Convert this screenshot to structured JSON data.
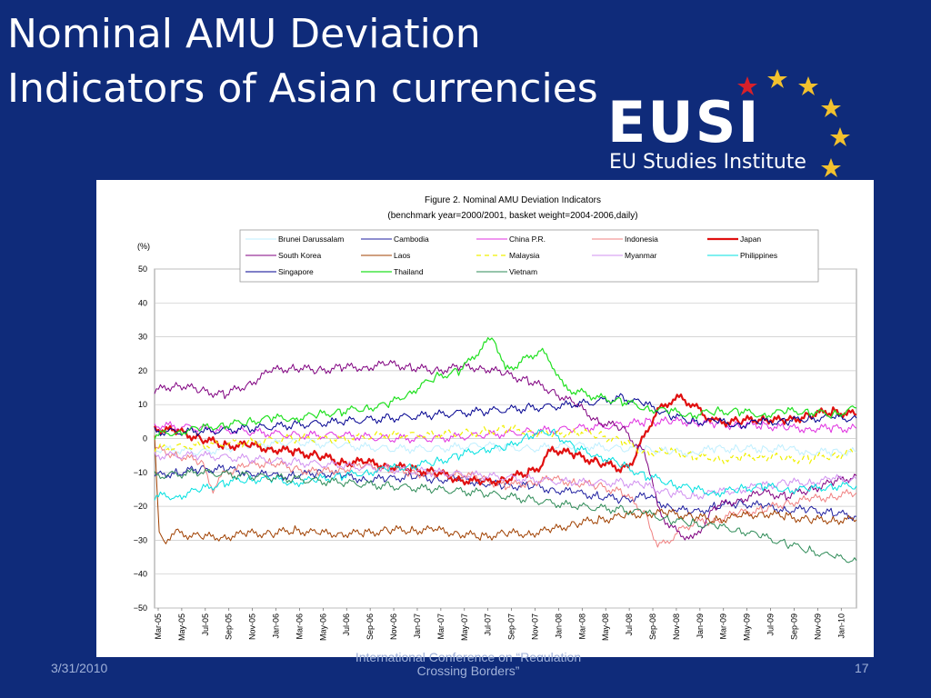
{
  "slide": {
    "title_line1": "Nominal AMU Deviation",
    "title_line2": "Indicators of Asian currencies",
    "logo_text": "EUSI",
    "logo_subtitle": "EU Studies Institute",
    "logo_icon": "eu-stars-icon",
    "footer_date": "3/31/2010",
    "footer_center_line1": "International Conference on “Regulation",
    "footer_center_line2": "Crossing Borders”",
    "footer_page": "17",
    "colors": {
      "background": "#0f2b7a",
      "text": "#ffffff",
      "footer": "#9fb0d8",
      "star_gold": "#f2c12e",
      "star_red": "#d8202a"
    }
  },
  "chart_data": {
    "type": "line",
    "title": "Figure 2. Nominal AMU Deviation Indicators",
    "subtitle": "(benchmark year=2000/2001, basket weight=2004-2006,daily)",
    "ylabel": "(%)",
    "ylim": [
      -50,
      50
    ],
    "yticks": [
      50,
      40,
      30,
      20,
      10,
      0,
      -10,
      -20,
      -30,
      -40,
      -50
    ],
    "xlim": [
      0,
      60
    ],
    "xticks": [
      "Mar-05",
      "May-05",
      "Jul-05",
      "Sep-05",
      "Nov-05",
      "Jan-06",
      "Mar-06",
      "May-06",
      "Jul-06",
      "Sep-06",
      "Nov-06",
      "Jan-07",
      "Mar-07",
      "May-07",
      "Jul-07",
      "Sep-07",
      "Nov-07",
      "Jan-08",
      "Mar-08",
      "May-08",
      "Jul-08",
      "Sep-08",
      "Nov-08",
      "Jan-09",
      "Mar-09",
      "May-09",
      "Jul-09",
      "Sep-09",
      "Nov-09",
      "Jan-10"
    ],
    "grid": true,
    "legend_position": "top",
    "series": [
      {
        "name": "Brunei Darussalam",
        "color": "#bfefff",
        "width": 1,
        "x": [
          0,
          4,
          8,
          12,
          16,
          20,
          24,
          28,
          32,
          36,
          40,
          42,
          44,
          46,
          48,
          50,
          52,
          54,
          56,
          58,
          60
        ],
        "y": [
          -3,
          -4,
          -2,
          -1,
          -2,
          -3,
          -3,
          -2,
          -3,
          -2,
          -3,
          -3,
          -4,
          -4,
          -3,
          -3,
          -3,
          -3,
          -4,
          -4,
          -4
        ]
      },
      {
        "name": "Cambodia",
        "color": "#1f1fa0",
        "width": 1,
        "x": [
          0,
          2,
          4,
          6,
          8,
          10,
          12,
          14,
          16,
          18,
          20,
          22,
          24,
          26,
          28,
          30,
          32,
          34,
          36,
          38,
          40,
          42,
          44,
          46,
          48,
          50,
          52,
          54,
          56,
          58,
          60
        ],
        "y": [
          -11,
          -10,
          -9,
          -9,
          -10,
          -11,
          -11,
          -10,
          -11,
          -12,
          -12,
          -11,
          -12,
          -12,
          -13,
          -14,
          -14,
          -15,
          -16,
          -17,
          -18,
          -17,
          -20,
          -22,
          -20,
          -19,
          -20,
          -21,
          -21,
          -22,
          -23
        ]
      },
      {
        "name": "China P.R.",
        "color": "#e030e0",
        "width": 1,
        "x": [
          0,
          4,
          8,
          12,
          16,
          20,
          24,
          28,
          32,
          36,
          40,
          42,
          44,
          46,
          48,
          50,
          52,
          54,
          56,
          58,
          60
        ],
        "y": [
          4,
          3,
          2,
          1,
          1,
          0,
          0,
          1,
          2,
          3,
          4,
          5,
          5,
          5,
          4,
          4,
          4,
          3,
          3,
          3,
          3
        ]
      },
      {
        "name": "Indonesia",
        "color": "#f08080",
        "width": 1,
        "x": [
          0,
          2,
          4,
          5,
          6,
          8,
          10,
          12,
          14,
          16,
          18,
          20,
          22,
          24,
          26,
          28,
          30,
          32,
          34,
          36,
          38,
          40,
          42,
          43,
          44,
          45,
          46,
          48,
          50,
          52,
          54,
          56,
          58,
          60
        ],
        "y": [
          -3,
          -5,
          -7,
          -15,
          -10,
          -8,
          -7,
          -9,
          -10,
          -9,
          -8,
          -9,
          -10,
          -11,
          -10,
          -12,
          -14,
          -13,
          -12,
          -13,
          -14,
          -16,
          -22,
          -32,
          -30,
          -27,
          -25,
          -24,
          -22,
          -21,
          -19,
          -18,
          -17,
          -16
        ]
      },
      {
        "name": "Japan",
        "color": "#e01010",
        "width": 2.2,
        "x": [
          0,
          2,
          4,
          6,
          8,
          10,
          12,
          14,
          16,
          18,
          20,
          22,
          24,
          26,
          28,
          30,
          32,
          33,
          34,
          36,
          38,
          40,
          41,
          42,
          43,
          44,
          45,
          46,
          47,
          48,
          50,
          52,
          54,
          56,
          58,
          60
        ],
        "y": [
          3,
          2,
          0,
          -2,
          -2,
          -3,
          -4,
          -5,
          -7,
          -7,
          -8,
          -9,
          -10,
          -12,
          -13,
          -12,
          -10,
          -8,
          -3,
          -5,
          -7,
          -9,
          -6,
          2,
          8,
          11,
          12,
          10,
          7,
          5,
          5,
          6,
          5,
          7,
          8,
          7
        ]
      },
      {
        "name": "South Korea",
        "color": "#800080",
        "width": 1,
        "x": [
          0,
          2,
          4,
          6,
          8,
          10,
          12,
          14,
          16,
          18,
          20,
          22,
          24,
          26,
          28,
          30,
          32,
          34,
          36,
          38,
          40,
          42,
          43,
          44,
          45,
          46,
          48,
          50,
          52,
          54,
          56,
          58,
          60
        ],
        "y": [
          14,
          16,
          14,
          13,
          16,
          20,
          21,
          20,
          21,
          21,
          22,
          21,
          20,
          21,
          21,
          19,
          17,
          14,
          10,
          5,
          3,
          -5,
          -20,
          -26,
          -28,
          -30,
          -20,
          -18,
          -16,
          -17,
          -15,
          -13,
          -11
        ]
      },
      {
        "name": "Laos",
        "color": "#a04000",
        "width": 1,
        "x": [
          0,
          0.4,
          0.8,
          2,
          4,
          6,
          8,
          10,
          12,
          14,
          16,
          18,
          20,
          22,
          24,
          26,
          28,
          30,
          32,
          34,
          36,
          38,
          40,
          42,
          44,
          46,
          48,
          50,
          52,
          54,
          56,
          58,
          60
        ],
        "y": [
          0,
          -28,
          -30,
          -28,
          -29,
          -29,
          -28,
          -28,
          -27,
          -28,
          -28,
          -28,
          -27,
          -27,
          -27,
          -28,
          -29,
          -28,
          -28,
          -27,
          -25,
          -24,
          -23,
          -22,
          -22,
          -23,
          -24,
          -23,
          -22,
          -23,
          -24,
          -24,
          -24
        ]
      },
      {
        "name": "Malaysia",
        "color": "#f0f000",
        "width": 1.2,
        "dash": "5,4",
        "x": [
          0,
          4,
          8,
          12,
          16,
          20,
          24,
          28,
          30,
          32,
          34,
          36,
          38,
          40,
          42,
          44,
          46,
          48,
          50,
          52,
          54,
          56,
          58,
          60
        ],
        "y": [
          -3,
          -2,
          -1,
          0,
          0,
          1,
          1,
          2,
          3,
          2,
          1,
          2,
          1,
          -1,
          -4,
          -4,
          -5,
          -6,
          -6,
          -5,
          -6,
          -6,
          -5,
          -4
        ]
      },
      {
        "name": "Myanmar",
        "color": "#d090f0",
        "width": 1,
        "x": [
          0,
          4,
          8,
          12,
          16,
          20,
          24,
          28,
          32,
          36,
          40,
          42,
          44,
          46,
          48,
          50,
          52,
          54,
          56,
          58,
          60
        ],
        "y": [
          -5,
          -5,
          -6,
          -7,
          -8,
          -9,
          -10,
          -11,
          -12,
          -13,
          -13,
          -14,
          -16,
          -17,
          -16,
          -15,
          -14,
          -13,
          -13,
          -12,
          -12
        ]
      },
      {
        "name": "Philippines",
        "color": "#00e0e0",
        "width": 1,
        "x": [
          0,
          2,
          4,
          6,
          8,
          10,
          12,
          14,
          16,
          18,
          20,
          22,
          24,
          26,
          28,
          30,
          32,
          34,
          36,
          38,
          40,
          42,
          44,
          46,
          48,
          50,
          52,
          54,
          56,
          58,
          60
        ],
        "y": [
          -17,
          -17,
          -15,
          -13,
          -12,
          -12,
          -13,
          -12,
          -11,
          -10,
          -9,
          -8,
          -7,
          -5,
          -3,
          -3,
          1,
          2,
          -3,
          -5,
          -8,
          -11,
          -13,
          -15,
          -16,
          -15,
          -14,
          -15,
          -15,
          -14,
          -14
        ]
      },
      {
        "name": "Singapore",
        "color": "#000090",
        "width": 1,
        "x": [
          0,
          4,
          8,
          12,
          16,
          20,
          24,
          28,
          32,
          36,
          40,
          42,
          44,
          46,
          48,
          50,
          52,
          54,
          56,
          58,
          60
        ],
        "y": [
          2,
          2,
          3,
          4,
          5,
          6,
          7,
          8,
          9,
          10,
          12,
          10,
          7,
          5,
          5,
          4,
          5,
          5,
          6,
          6,
          6
        ]
      },
      {
        "name": "Thailand",
        "color": "#20e020",
        "width": 1.2,
        "x": [
          0,
          2,
          4,
          6,
          8,
          10,
          12,
          14,
          16,
          18,
          20,
          22,
          24,
          26,
          27,
          28,
          29,
          30,
          31,
          32,
          33,
          34,
          35,
          36,
          37,
          38,
          40,
          42,
          44,
          46,
          48,
          50,
          52,
          54,
          56,
          58,
          60
        ],
        "y": [
          1,
          2,
          3,
          4,
          5,
          6,
          6,
          7,
          8,
          9,
          10,
          14,
          18,
          20,
          23,
          27,
          30,
          20,
          22,
          24,
          26,
          22,
          15,
          14,
          13,
          12,
          11,
          9,
          8,
          7,
          8,
          8,
          7,
          8,
          8,
          7,
          9
        ]
      },
      {
        "name": "Vietnam",
        "color": "#2e8b57",
        "width": 1,
        "x": [
          0,
          4,
          8,
          12,
          16,
          20,
          24,
          28,
          32,
          36,
          40,
          42,
          44,
          46,
          48,
          50,
          52,
          54,
          56,
          58,
          60
        ],
        "y": [
          -11,
          -10,
          -11,
          -12,
          -13,
          -14,
          -15,
          -16,
          -18,
          -20,
          -21,
          -22,
          -24,
          -25,
          -26,
          -27,
          -29,
          -31,
          -33,
          -35,
          -36
        ]
      }
    ]
  }
}
